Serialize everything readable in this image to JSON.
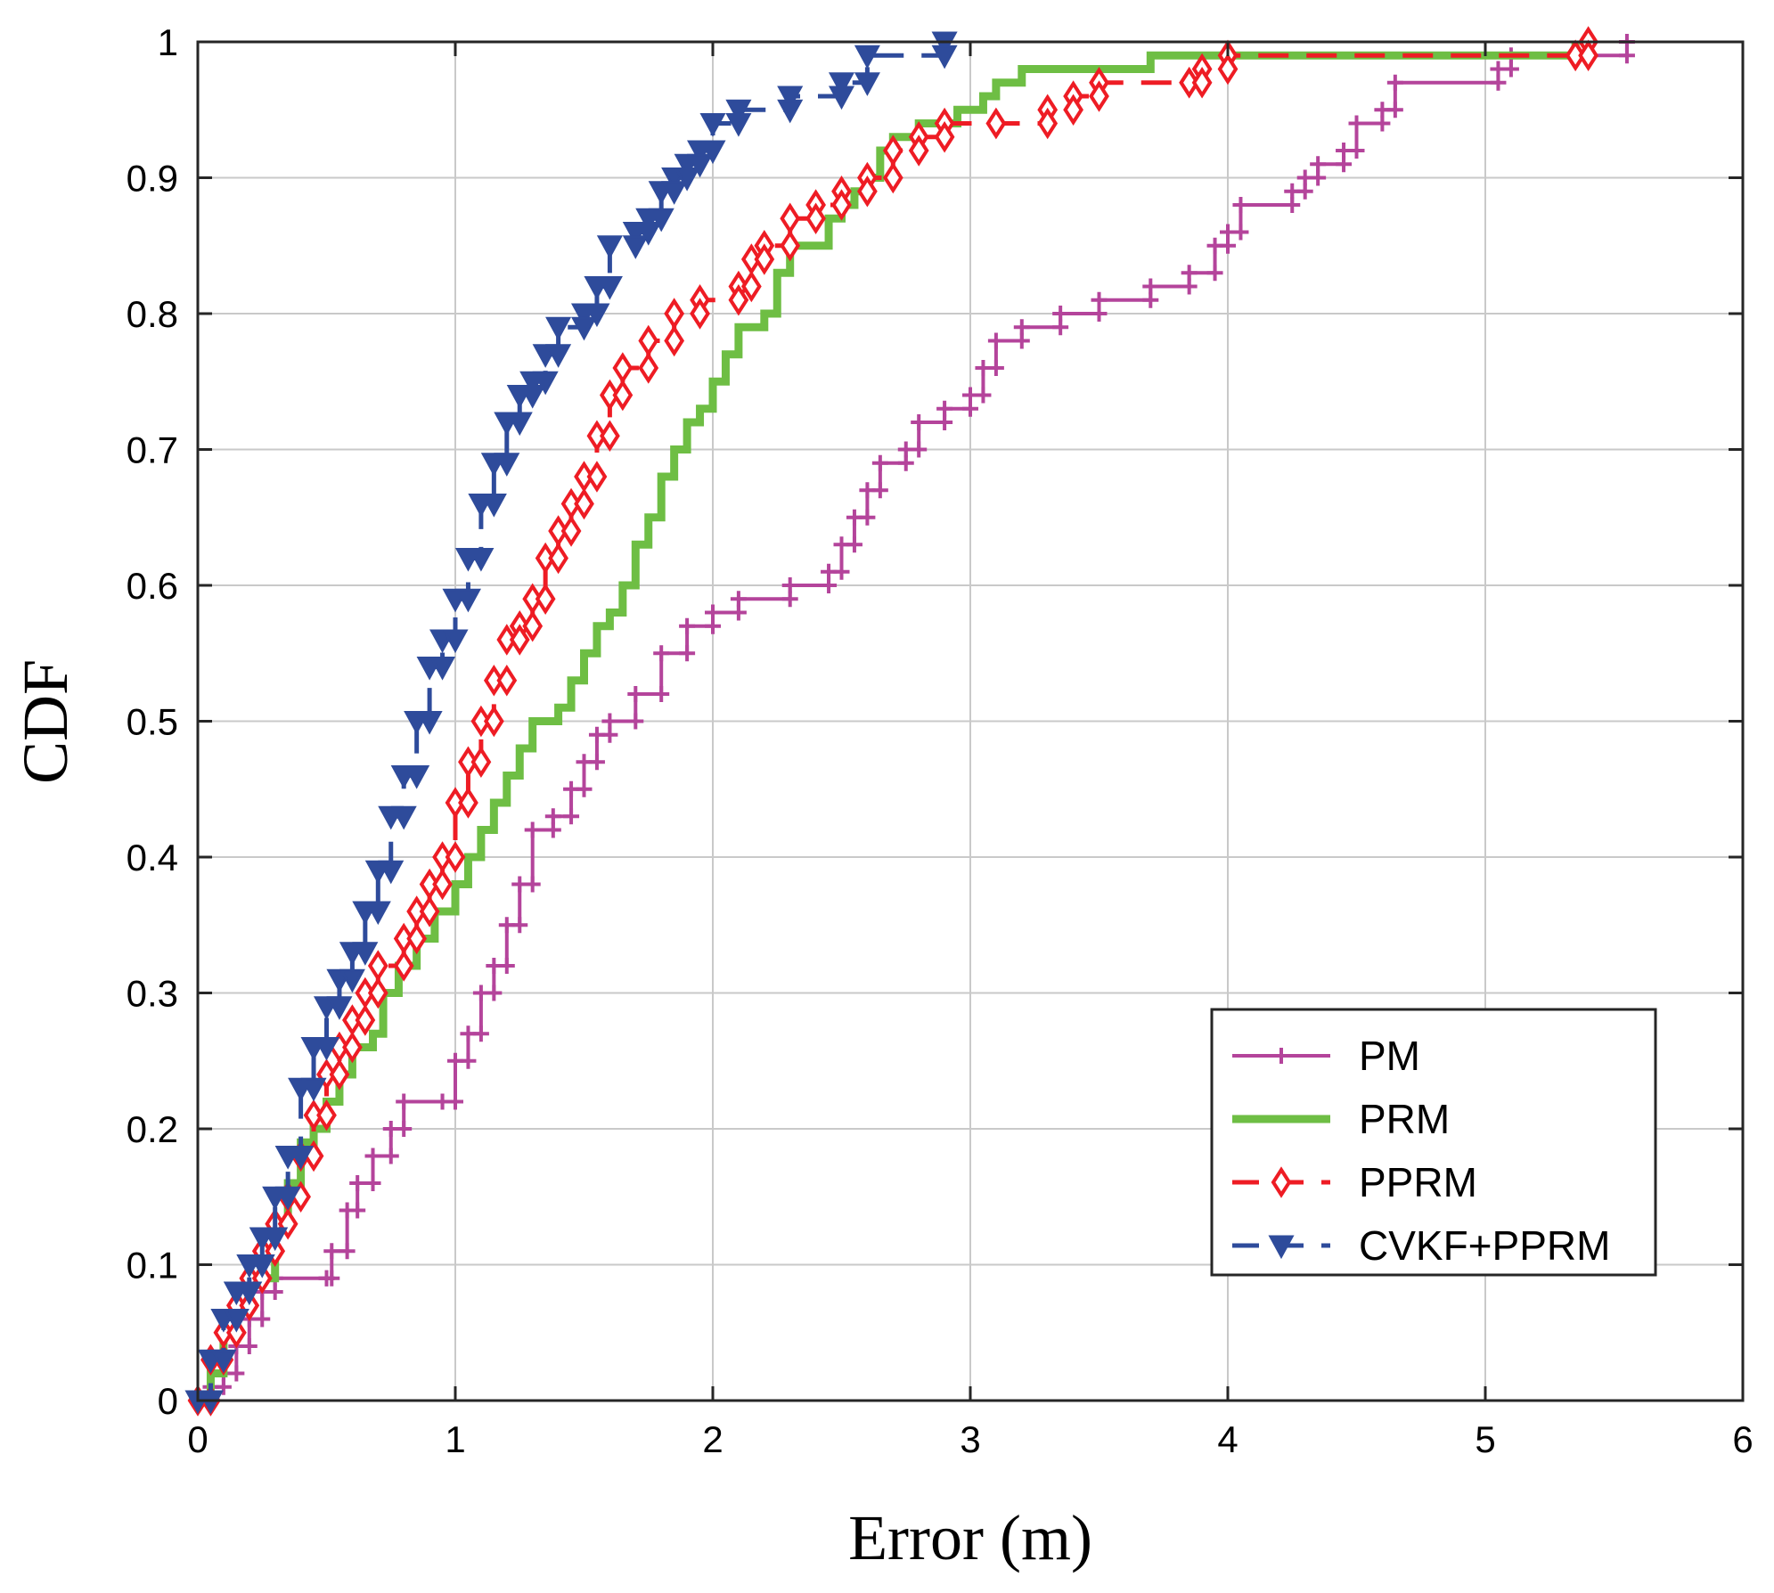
{
  "chart_data": {
    "type": "line",
    "title": "",
    "xlabel": "Error (m)",
    "ylabel": "CDF",
    "xlim": [
      0,
      6
    ],
    "ylim": [
      0,
      1
    ],
    "xticks": [
      "0",
      "1",
      "2",
      "3",
      "4",
      "5",
      "6"
    ],
    "yticks": [
      "0",
      "0.1",
      "0.2",
      "0.3",
      "0.4",
      "0.5",
      "0.6",
      "0.7",
      "0.8",
      "0.9",
      "1"
    ],
    "grid": true,
    "legend_position": "bottom-right",
    "series": [
      {
        "name": "PM",
        "color": "#b4449b",
        "line": "solid",
        "marker": "plus",
        "points": [
          [
            0,
            0
          ],
          [
            0.05,
            0.01
          ],
          [
            0.1,
            0.02
          ],
          [
            0.15,
            0.04
          ],
          [
            0.2,
            0.06
          ],
          [
            0.25,
            0.08
          ],
          [
            0.3,
            0.09
          ],
          [
            0.5,
            0.09
          ],
          [
            0.52,
            0.11
          ],
          [
            0.58,
            0.14
          ],
          [
            0.62,
            0.16
          ],
          [
            0.68,
            0.18
          ],
          [
            0.75,
            0.2
          ],
          [
            0.8,
            0.22
          ],
          [
            0.95,
            0.22
          ],
          [
            1.0,
            0.25
          ],
          [
            1.05,
            0.27
          ],
          [
            1.1,
            0.3
          ],
          [
            1.15,
            0.32
          ],
          [
            1.2,
            0.35
          ],
          [
            1.25,
            0.38
          ],
          [
            1.3,
            0.42
          ],
          [
            1.38,
            0.43
          ],
          [
            1.45,
            0.45
          ],
          [
            1.5,
            0.47
          ],
          [
            1.55,
            0.49
          ],
          [
            1.6,
            0.5
          ],
          [
            1.7,
            0.52
          ],
          [
            1.8,
            0.55
          ],
          [
            1.9,
            0.57
          ],
          [
            2.0,
            0.58
          ],
          [
            2.1,
            0.59
          ],
          [
            2.3,
            0.6
          ],
          [
            2.45,
            0.61
          ],
          [
            2.5,
            0.63
          ],
          [
            2.55,
            0.65
          ],
          [
            2.6,
            0.67
          ],
          [
            2.65,
            0.69
          ],
          [
            2.75,
            0.7
          ],
          [
            2.8,
            0.72
          ],
          [
            2.9,
            0.73
          ],
          [
            3.0,
            0.74
          ],
          [
            3.05,
            0.76
          ],
          [
            3.1,
            0.78
          ],
          [
            3.2,
            0.79
          ],
          [
            3.35,
            0.8
          ],
          [
            3.5,
            0.81
          ],
          [
            3.7,
            0.82
          ],
          [
            3.85,
            0.83
          ],
          [
            3.95,
            0.85
          ],
          [
            4.0,
            0.86
          ],
          [
            4.05,
            0.88
          ],
          [
            4.25,
            0.89
          ],
          [
            4.3,
            0.9
          ],
          [
            4.35,
            0.91
          ],
          [
            4.45,
            0.92
          ],
          [
            4.5,
            0.94
          ],
          [
            4.6,
            0.95
          ],
          [
            4.65,
            0.97
          ],
          [
            5.05,
            0.98
          ],
          [
            5.1,
            0.99
          ],
          [
            5.55,
            1.0
          ]
        ]
      },
      {
        "name": "PRM",
        "color": "#6ebe44",
        "line": "solid-thick",
        "marker": "none",
        "points": [
          [
            0,
            0
          ],
          [
            0.05,
            0.02
          ],
          [
            0.1,
            0.05
          ],
          [
            0.15,
            0.07
          ],
          [
            0.2,
            0.09
          ],
          [
            0.3,
            0.13
          ],
          [
            0.35,
            0.16
          ],
          [
            0.4,
            0.19
          ],
          [
            0.45,
            0.2
          ],
          [
            0.5,
            0.22
          ],
          [
            0.55,
            0.24
          ],
          [
            0.6,
            0.26
          ],
          [
            0.68,
            0.27
          ],
          [
            0.72,
            0.3
          ],
          [
            0.78,
            0.32
          ],
          [
            0.85,
            0.34
          ],
          [
            0.92,
            0.36
          ],
          [
            1.0,
            0.38
          ],
          [
            1.05,
            0.4
          ],
          [
            1.1,
            0.42
          ],
          [
            1.15,
            0.44
          ],
          [
            1.2,
            0.46
          ],
          [
            1.25,
            0.48
          ],
          [
            1.3,
            0.5
          ],
          [
            1.4,
            0.51
          ],
          [
            1.45,
            0.53
          ],
          [
            1.5,
            0.55
          ],
          [
            1.55,
            0.57
          ],
          [
            1.6,
            0.58
          ],
          [
            1.65,
            0.6
          ],
          [
            1.7,
            0.63
          ],
          [
            1.75,
            0.65
          ],
          [
            1.8,
            0.68
          ],
          [
            1.85,
            0.7
          ],
          [
            1.9,
            0.72
          ],
          [
            1.95,
            0.73
          ],
          [
            2.0,
            0.75
          ],
          [
            2.05,
            0.77
          ],
          [
            2.1,
            0.79
          ],
          [
            2.2,
            0.8
          ],
          [
            2.25,
            0.83
          ],
          [
            2.3,
            0.85
          ],
          [
            2.45,
            0.87
          ],
          [
            2.5,
            0.88
          ],
          [
            2.55,
            0.89
          ],
          [
            2.6,
            0.9
          ],
          [
            2.65,
            0.92
          ],
          [
            2.7,
            0.93
          ],
          [
            2.8,
            0.94
          ],
          [
            2.95,
            0.95
          ],
          [
            3.05,
            0.96
          ],
          [
            3.1,
            0.97
          ],
          [
            3.2,
            0.98
          ],
          [
            3.7,
            0.99
          ],
          [
            5.35,
            1.0
          ]
        ]
      },
      {
        "name": "PPRM",
        "color": "#ee1c24",
        "line": "dashed",
        "marker": "diamond",
        "points": [
          [
            0,
            0
          ],
          [
            0.05,
            0.03
          ],
          [
            0.1,
            0.05
          ],
          [
            0.15,
            0.07
          ],
          [
            0.2,
            0.09
          ],
          [
            0.25,
            0.11
          ],
          [
            0.3,
            0.13
          ],
          [
            0.35,
            0.15
          ],
          [
            0.4,
            0.18
          ],
          [
            0.45,
            0.21
          ],
          [
            0.5,
            0.24
          ],
          [
            0.55,
            0.26
          ],
          [
            0.6,
            0.28
          ],
          [
            0.65,
            0.3
          ],
          [
            0.7,
            0.32
          ],
          [
            0.8,
            0.34
          ],
          [
            0.85,
            0.36
          ],
          [
            0.9,
            0.38
          ],
          [
            0.95,
            0.4
          ],
          [
            1.0,
            0.44
          ],
          [
            1.05,
            0.47
          ],
          [
            1.1,
            0.5
          ],
          [
            1.15,
            0.53
          ],
          [
            1.2,
            0.56
          ],
          [
            1.25,
            0.57
          ],
          [
            1.3,
            0.59
          ],
          [
            1.35,
            0.62
          ],
          [
            1.4,
            0.64
          ],
          [
            1.45,
            0.66
          ],
          [
            1.5,
            0.68
          ],
          [
            1.55,
            0.71
          ],
          [
            1.6,
            0.74
          ],
          [
            1.65,
            0.76
          ],
          [
            1.75,
            0.78
          ],
          [
            1.85,
            0.8
          ],
          [
            1.95,
            0.81
          ],
          [
            2.1,
            0.82
          ],
          [
            2.15,
            0.84
          ],
          [
            2.2,
            0.85
          ],
          [
            2.3,
            0.87
          ],
          [
            2.4,
            0.88
          ],
          [
            2.5,
            0.89
          ],
          [
            2.6,
            0.9
          ],
          [
            2.7,
            0.92
          ],
          [
            2.8,
            0.93
          ],
          [
            2.9,
            0.94
          ],
          [
            3.1,
            0.94
          ],
          [
            3.3,
            0.95
          ],
          [
            3.4,
            0.96
          ],
          [
            3.5,
            0.97
          ],
          [
            3.85,
            0.97
          ],
          [
            3.9,
            0.98
          ],
          [
            4.0,
            0.99
          ],
          [
            5.35,
            0.99
          ],
          [
            5.4,
            1.0
          ]
        ]
      },
      {
        "name": "CVKF+PPRM",
        "color": "#2e4b9b",
        "line": "dashed",
        "marker": "triangle-down",
        "points": [
          [
            0,
            0
          ],
          [
            0.05,
            0.03
          ],
          [
            0.1,
            0.06
          ],
          [
            0.15,
            0.08
          ],
          [
            0.2,
            0.1
          ],
          [
            0.25,
            0.12
          ],
          [
            0.3,
            0.15
          ],
          [
            0.35,
            0.18
          ],
          [
            0.4,
            0.23
          ],
          [
            0.45,
            0.26
          ],
          [
            0.5,
            0.29
          ],
          [
            0.55,
            0.31
          ],
          [
            0.6,
            0.33
          ],
          [
            0.65,
            0.36
          ],
          [
            0.7,
            0.39
          ],
          [
            0.75,
            0.43
          ],
          [
            0.8,
            0.46
          ],
          [
            0.85,
            0.5
          ],
          [
            0.9,
            0.54
          ],
          [
            0.95,
            0.56
          ],
          [
            1.0,
            0.59
          ],
          [
            1.05,
            0.62
          ],
          [
            1.1,
            0.66
          ],
          [
            1.15,
            0.69
          ],
          [
            1.2,
            0.72
          ],
          [
            1.25,
            0.74
          ],
          [
            1.3,
            0.75
          ],
          [
            1.35,
            0.77
          ],
          [
            1.4,
            0.79
          ],
          [
            1.5,
            0.8
          ],
          [
            1.55,
            0.82
          ],
          [
            1.6,
            0.85
          ],
          [
            1.7,
            0.86
          ],
          [
            1.75,
            0.87
          ],
          [
            1.8,
            0.89
          ],
          [
            1.85,
            0.9
          ],
          [
            1.9,
            0.91
          ],
          [
            1.95,
            0.92
          ],
          [
            2.0,
            0.94
          ],
          [
            2.1,
            0.95
          ],
          [
            2.3,
            0.96
          ],
          [
            2.5,
            0.97
          ],
          [
            2.6,
            0.99
          ],
          [
            2.9,
            1.0
          ]
        ]
      }
    ]
  }
}
